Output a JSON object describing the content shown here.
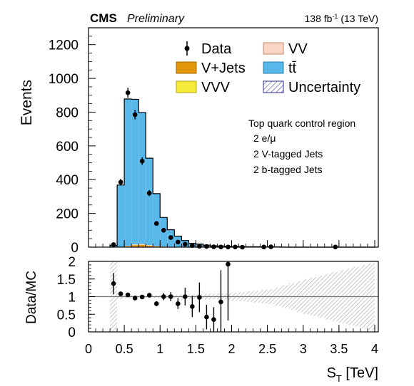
{
  "header": {
    "experiment": "CMS",
    "status": "Preliminary",
    "lumi_prefix": "138 fb",
    "lumi_exp": "-1",
    "lumi_suffix": " (13 TeV)"
  },
  "region_text": [
    "Top quark control region",
    "2 e/μ",
    "2 V-tagged Jets",
    "2 b-tagged Jets"
  ],
  "colors": {
    "ttbar": "#59b8ea",
    "vjets": "#e3970c",
    "vv": "#fcd6c4",
    "vvv": "#f6eb3b",
    "uncertainty": "#2b2b8f",
    "ratio_band": "#bdbdbd"
  },
  "chart_data": [
    {
      "type": "bar",
      "subtype": "stacked-histogram",
      "ylabel": "Events",
      "ylim": [
        0,
        1300
      ],
      "yticks": [
        0,
        200,
        400,
        600,
        800,
        1000,
        1200
      ],
      "xlim": [
        0,
        4.05
      ],
      "legend": {
        "placement": "top-right",
        "entries": [
          {
            "label": "Data",
            "key": "data"
          },
          {
            "label": "VV",
            "key": "vv"
          },
          {
            "label": "V+Jets",
            "key": "vjets"
          },
          {
            "label": "tt̄",
            "key": "ttbar"
          },
          {
            "label": "VVV",
            "key": "vvv"
          },
          {
            "label": "Uncertainty",
            "key": "uncertainty"
          }
        ]
      },
      "bin_edges": [
        0.3,
        0.4,
        0.5,
        0.6,
        0.7,
        0.8,
        0.9,
        1.0,
        1.1,
        1.2,
        1.3,
        1.4,
        1.5,
        1.6,
        1.7,
        1.8,
        1.9,
        2.0,
        2.1,
        2.2,
        2.3,
        2.4,
        2.5,
        2.6,
        2.7,
        2.8,
        2.9,
        3.0,
        3.1,
        3.2,
        3.3,
        3.4,
        3.5,
        3.6,
        3.7,
        3.8,
        3.9,
        4.0
      ],
      "series": [
        {
          "name": "V+Jets",
          "key": "vjets",
          "values": [
            0,
            1,
            6,
            12,
            14,
            9,
            5,
            3,
            2,
            1,
            1,
            0,
            0,
            0,
            0,
            0,
            0,
            0,
            0,
            0,
            0,
            0,
            0,
            0,
            0,
            0,
            0,
            0,
            0,
            0,
            0,
            0,
            0,
            0,
            0,
            0,
            0
          ]
        },
        {
          "name": "VV",
          "key": "vv",
          "values": [
            0,
            0,
            2,
            3,
            3,
            2,
            2,
            1,
            1,
            1,
            0,
            0,
            0,
            0,
            0,
            0,
            0,
            0,
            0,
            0,
            0,
            0,
            0,
            0,
            0,
            0,
            0,
            0,
            0,
            0,
            0,
            0,
            0,
            0,
            0,
            0,
            0
          ]
        },
        {
          "name": "VVV",
          "key": "vvv",
          "values": [
            0,
            0,
            0,
            1,
            1,
            1,
            0,
            0,
            0,
            0,
            0,
            0,
            0,
            0,
            0,
            0,
            0,
            0,
            0,
            0,
            0,
            0,
            0,
            0,
            0,
            0,
            0,
            0,
            0,
            0,
            0,
            0,
            0,
            0,
            0,
            0,
            0
          ]
        },
        {
          "name": "tt̄",
          "key": "ttbar",
          "values": [
            10,
            367,
            870,
            860,
            780,
            515,
            310,
            172,
            100,
            63,
            38,
            23,
            18,
            12,
            8,
            7,
            5,
            4,
            3,
            2,
            2,
            1,
            1,
            1,
            0,
            0,
            0,
            0,
            0,
            0,
            0,
            0,
            0,
            0,
            0,
            0,
            0
          ]
        }
      ],
      "data_points": [
        {
          "x": 0.35,
          "y": 15,
          "err": 4
        },
        {
          "x": 0.45,
          "y": 385,
          "err": 20
        },
        {
          "x": 0.55,
          "y": 915,
          "err": 30
        },
        {
          "x": 0.65,
          "y": 785,
          "err": 28
        },
        {
          "x": 0.75,
          "y": 510,
          "err": 23
        },
        {
          "x": 0.85,
          "y": 320,
          "err": 18
        },
        {
          "x": 0.95,
          "y": 140,
          "err": 12
        },
        {
          "x": 1.05,
          "y": 100,
          "err": 10
        },
        {
          "x": 1.15,
          "y": 57,
          "err": 8
        },
        {
          "x": 1.25,
          "y": 30,
          "err": 6
        },
        {
          "x": 1.35,
          "y": 17,
          "err": 4
        },
        {
          "x": 1.45,
          "y": 9,
          "err": 3
        },
        {
          "x": 1.55,
          "y": 5,
          "err": 2
        },
        {
          "x": 1.65,
          "y": 4,
          "err": 2
        },
        {
          "x": 1.75,
          "y": 2,
          "err": 1.5
        },
        {
          "x": 1.85,
          "y": 1,
          "err": 1
        },
        {
          "x": 1.95,
          "y": 1,
          "err": 1
        },
        {
          "x": 2.05,
          "y": 1,
          "err": 1
        },
        {
          "x": 2.15,
          "y": 0,
          "err": 1
        },
        {
          "x": 2.45,
          "y": 1,
          "err": 1
        },
        {
          "x": 2.55,
          "y": 2,
          "err": 1.5
        },
        {
          "x": 3.45,
          "y": 1,
          "err": 1
        }
      ]
    },
    {
      "type": "scatter",
      "subtype": "ratio",
      "xlabel": "S_T [TeV]",
      "ylabel": "Data/MC",
      "xlim": [
        0,
        4.05
      ],
      "ylim": [
        0,
        2
      ],
      "xticks": [
        0,
        0.5,
        1,
        1.5,
        2,
        2.5,
        3,
        3.5,
        4
      ],
      "ytick_labels": [
        "0",
        "0.5",
        "1",
        "1.5",
        "2"
      ],
      "reference_line": 1,
      "uncertainty_band": {
        "x": [
          0.3,
          0.4,
          0.5,
          0.6,
          0.7,
          0.8,
          0.9,
          1.0,
          1.1,
          1.2,
          1.3,
          1.4,
          1.5,
          1.6,
          1.7,
          1.8,
          1.9,
          2.0,
          2.1,
          2.2,
          2.3,
          2.4,
          2.5,
          2.6,
          2.7,
          2.8,
          2.9,
          3.0,
          3.1,
          3.2,
          3.3,
          3.4,
          3.5,
          3.6,
          3.7,
          3.8,
          3.9,
          4.0
        ],
        "half_width": [
          1.0,
          0.08,
          0.05,
          0.04,
          0.04,
          0.04,
          0.04,
          0.04,
          0.05,
          0.05,
          0.06,
          0.06,
          0.07,
          0.08,
          0.08,
          0.09,
          0.1,
          0.12,
          0.13,
          0.15,
          0.17,
          0.19,
          0.21,
          0.26,
          0.32,
          0.38,
          0.44,
          0.5,
          0.55,
          0.6,
          0.65,
          0.7,
          0.75,
          0.8,
          0.85,
          0.9,
          0.95,
          1.0
        ]
      },
      "points": [
        {
          "x": 0.35,
          "y": 1.37,
          "err": 0.3
        },
        {
          "x": 0.45,
          "y": 1.08,
          "err": 0.06
        },
        {
          "x": 0.55,
          "y": 1.05,
          "err": 0.04
        },
        {
          "x": 0.65,
          "y": 0.96,
          "err": 0.04
        },
        {
          "x": 0.75,
          "y": 0.99,
          "err": 0.05
        },
        {
          "x": 0.85,
          "y": 1.04,
          "err": 0.06
        },
        {
          "x": 0.95,
          "y": 0.8,
          "err": 0.07
        },
        {
          "x": 1.05,
          "y": 1.0,
          "err": 0.1
        },
        {
          "x": 1.15,
          "y": 1.0,
          "err": 0.13
        },
        {
          "x": 1.25,
          "y": 0.8,
          "err": 0.15
        },
        {
          "x": 1.35,
          "y": 1.0,
          "err": 0.25
        },
        {
          "x": 1.45,
          "y": 0.72,
          "err": 0.3
        },
        {
          "x": 1.55,
          "y": 0.98,
          "err": 0.42
        },
        {
          "x": 1.65,
          "y": 0.42,
          "err": 0.35
        },
        {
          "x": 1.75,
          "y": 0.35,
          "err": 0.35
        },
        {
          "x": 1.85,
          "y": 0.85,
          "err": 0.9
        },
        {
          "x": 1.95,
          "y": 1.92,
          "err": 1.6
        }
      ]
    }
  ]
}
